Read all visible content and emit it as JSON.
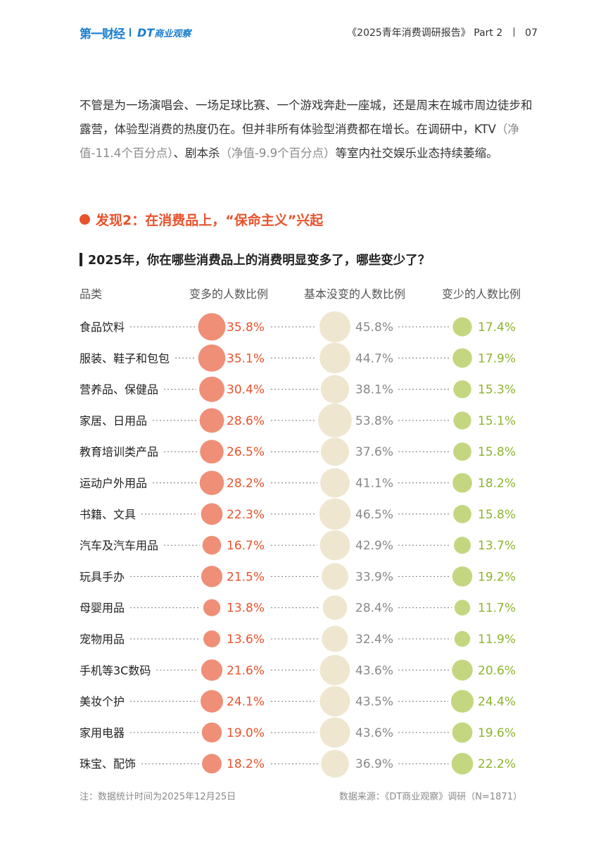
{
  "header": {
    "logo_main": "第一财经",
    "logo_dt": "DT",
    "logo_dt_name": "商业观察",
    "report_title": "《2025青年消费调研报告》",
    "part": "Part 2",
    "page_number": "07"
  },
  "intro": {
    "text_1": "不管是为一场演唱会、一场足球比赛、一个游戏奔赴一座城，还是周末在城市周边徒步和露营，体验型消费的热度仍在。但并非所有体验型消费都在增长。在调研中，KTV",
    "muted_1": "（净值-11.4个百分点）",
    "text_2": "、剧本杀",
    "muted_2": "（净值-9.9个百分点）",
    "text_3": "等室内社交娱乐业态持续萎缩。"
  },
  "finding": {
    "text": "发现2：在消费品上，“保命主义”兴起"
  },
  "chart_data": {
    "type": "bubble-table",
    "title": "2025年，你在哪些消费品上的消费明显变多了，哪些变少了？",
    "category_header": "品类",
    "columns": [
      "变多的人数比例",
      "基本没变的人数比例",
      "变少的人数比例"
    ],
    "colors": [
      "#ef8f77",
      "#efe6cf",
      "#c4d780"
    ],
    "label_colors": [
      "#e8522c",
      "#888888",
      "#8db32e"
    ],
    "categories": [
      "食品饮料",
      "服装、鞋子和包包",
      "营养品、保健品",
      "家居、日用品",
      "教育培训类产品",
      "运动户外用品",
      "书籍、文具",
      "汽车及汽车用品",
      "玩具手办",
      "母婴用品",
      "宠物用品",
      "手机等3C数码",
      "美妆个护",
      "家用电器",
      "珠宝、配饰"
    ],
    "series": [
      {
        "name": "变多的人数比例",
        "values": [
          35.8,
          35.1,
          30.4,
          28.6,
          26.5,
          28.2,
          22.3,
          16.7,
          21.5,
          13.8,
          13.6,
          21.6,
          24.1,
          19.0,
          18.2
        ]
      },
      {
        "name": "基本没变的人数比例",
        "values": [
          45.8,
          44.7,
          38.1,
          53.8,
          37.6,
          41.1,
          46.5,
          42.9,
          33.9,
          28.4,
          32.4,
          43.6,
          43.5,
          43.6,
          36.9
        ]
      },
      {
        "name": "变少的人数比例",
        "values": [
          17.4,
          17.9,
          15.3,
          15.1,
          15.8,
          18.2,
          15.8,
          13.7,
          19.2,
          11.7,
          11.9,
          20.6,
          24.4,
          19.6,
          22.2
        ]
      }
    ],
    "unit": "%"
  },
  "footer": {
    "note": "注：数据统计时间为2025年12月25日",
    "source": "数据来源：《DT商业观察》调研（N=1871）"
  }
}
